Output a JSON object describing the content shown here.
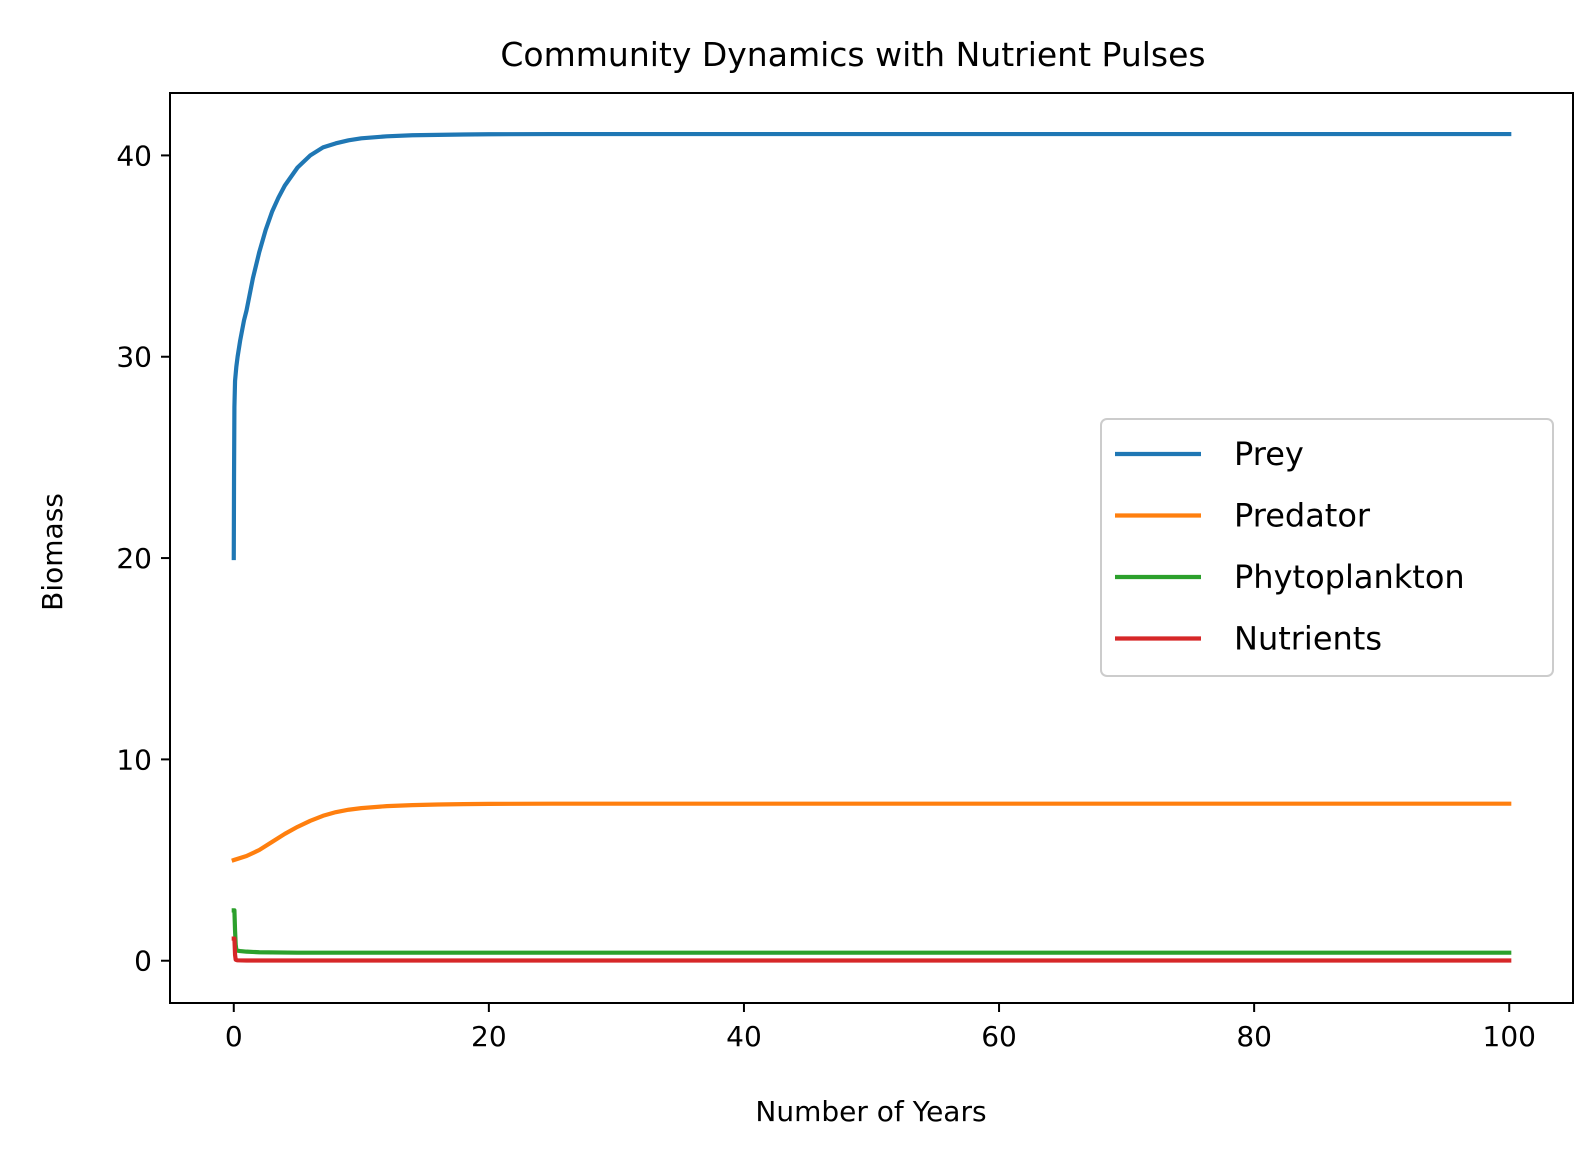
{
  "chart_data": {
    "type": "line",
    "title": "Community Dynamics with Nutrient Pulses",
    "xlabel": "Number of Years",
    "ylabel": "Biomass",
    "xlim": [
      -5,
      105
    ],
    "ylim": [
      -2.1,
      43.1
    ],
    "xticks": [
      0,
      20,
      40,
      60,
      80,
      100
    ],
    "xtick_labels": [
      "0",
      "20",
      "40",
      "60",
      "80",
      "100"
    ],
    "yticks": [
      0,
      10,
      20,
      30,
      40
    ],
    "ytick_labels": [
      "0",
      "10",
      "20",
      "30",
      "40"
    ],
    "grid": false,
    "legend_position": "center-right",
    "series": [
      {
        "name": "Prey",
        "color": "#1f77b4",
        "x": [
          0,
          0.02,
          0.05,
          0.1,
          0.2,
          0.3,
          0.5,
          0.8,
          1,
          1.5,
          2,
          2.5,
          3,
          3.5,
          4,
          5,
          6,
          7,
          8,
          9,
          10,
          12,
          14,
          16,
          18,
          20,
          25,
          30,
          40,
          50,
          60,
          70,
          80,
          90,
          100
        ],
        "y": [
          20,
          24,
          27.5,
          28.8,
          29.5,
          30,
          30.8,
          31.8,
          32.3,
          33.9,
          35.2,
          36.3,
          37.2,
          37.9,
          38.5,
          39.4,
          40.0,
          40.4,
          40.6,
          40.75,
          40.85,
          40.95,
          41.0,
          41.02,
          41.04,
          41.05,
          41.06,
          41.06,
          41.06,
          41.06,
          41.06,
          41.06,
          41.06,
          41.06,
          41.06
        ]
      },
      {
        "name": "Predator",
        "color": "#ff7f0e",
        "x": [
          0,
          1,
          2,
          3,
          4,
          5,
          6,
          7,
          8,
          9,
          10,
          12,
          14,
          16,
          18,
          20,
          25,
          30,
          40,
          50,
          60,
          70,
          80,
          90,
          100
        ],
        "y": [
          5.0,
          5.2,
          5.5,
          5.9,
          6.3,
          6.65,
          6.95,
          7.2,
          7.38,
          7.5,
          7.58,
          7.68,
          7.73,
          7.76,
          7.78,
          7.79,
          7.8,
          7.8,
          7.8,
          7.8,
          7.8,
          7.8,
          7.8,
          7.8,
          7.8
        ]
      },
      {
        "name": "Phytoplankton",
        "color": "#2ca02c",
        "x": [
          0,
          0.05,
          0.1,
          0.15,
          0.2,
          0.3,
          0.5,
          1,
          2,
          5,
          10,
          20,
          40,
          60,
          80,
          100
        ],
        "y": [
          2.5,
          2.5,
          1.5,
          0.8,
          0.55,
          0.5,
          0.48,
          0.45,
          0.42,
          0.4,
          0.4,
          0.4,
          0.4,
          0.4,
          0.4,
          0.4
        ]
      },
      {
        "name": "Nutrients",
        "color": "#d62728",
        "x": [
          0,
          0.05,
          0.1,
          0.15,
          0.3,
          1,
          5,
          20,
          40,
          60,
          80,
          100
        ],
        "y": [
          1.1,
          1.1,
          0.3,
          0.05,
          0.02,
          0.01,
          0.01,
          0.01,
          0.01,
          0.01,
          0.01,
          0.01
        ]
      }
    ]
  }
}
